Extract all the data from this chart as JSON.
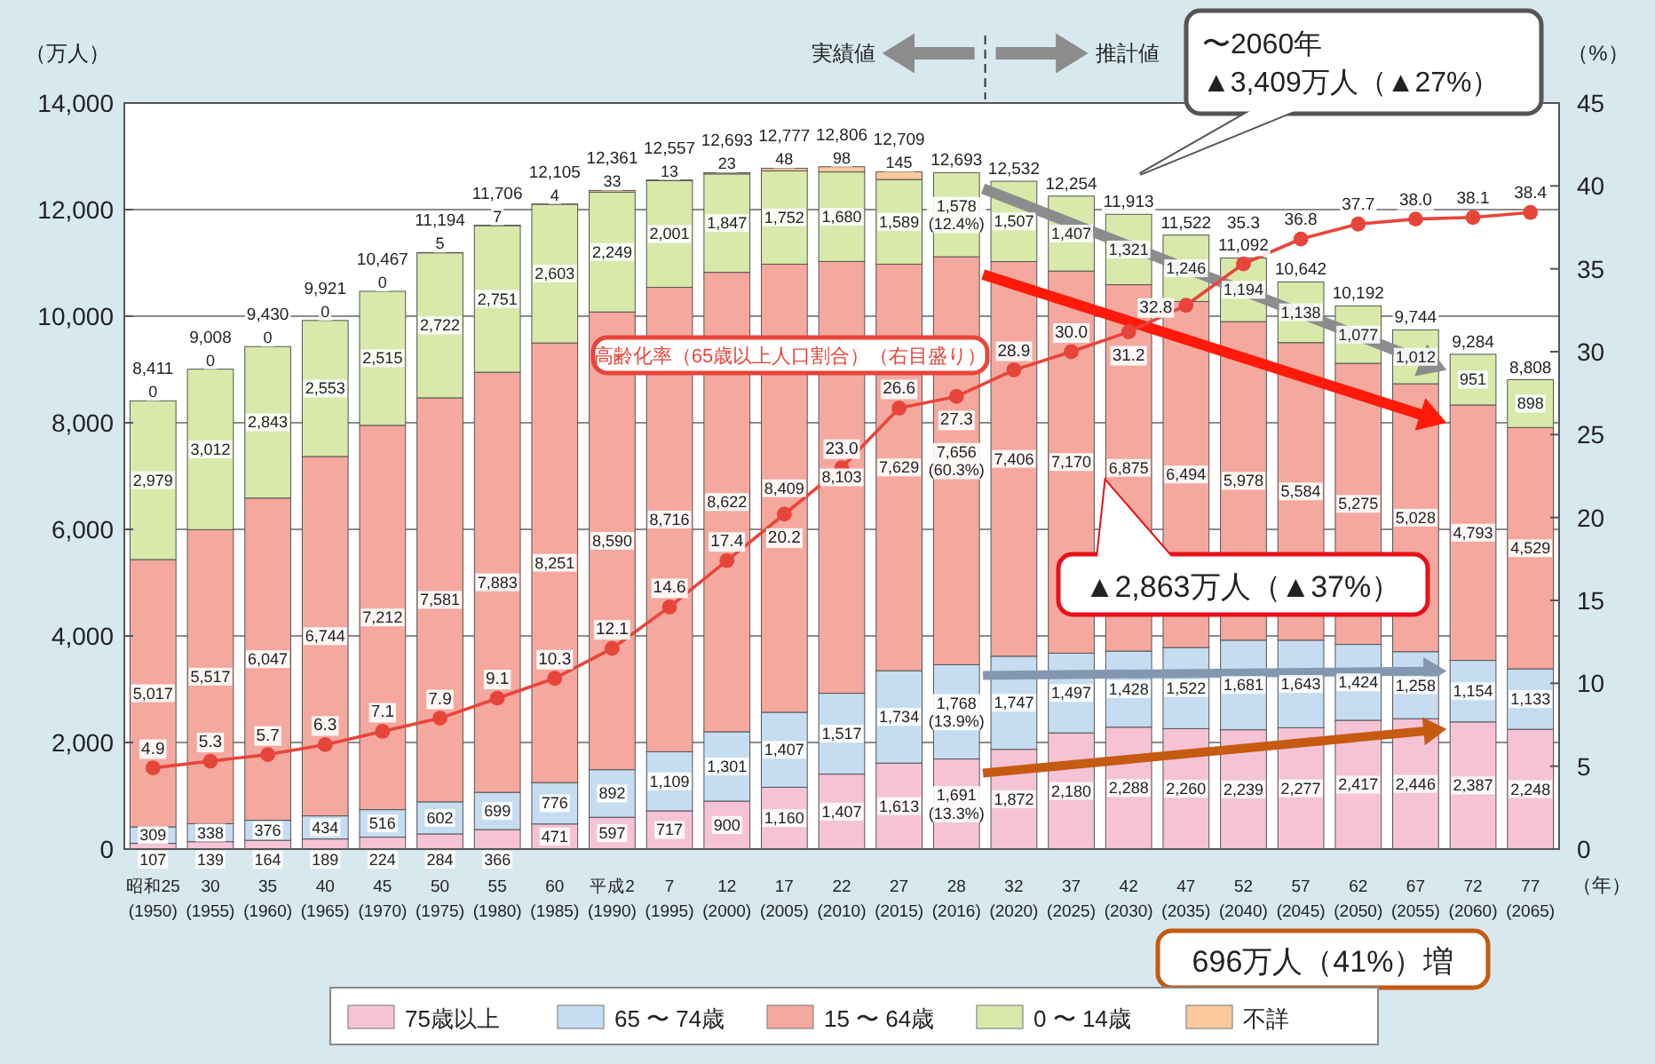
{
  "chart_data": {
    "type": "bar",
    "stacked": true,
    "categories": [
      "昭和25\n(1950)",
      "30\n(1955)",
      "35\n(1960)",
      "40\n(1965)",
      "45\n(1970)",
      "50\n(1975)",
      "55\n(1980)",
      "60\n(1985)",
      "平成2\n(1990)",
      "7\n(1995)",
      "12\n(2000)",
      "17\n(2005)",
      "22\n(2010)",
      "27\n(2015)",
      "28\n(2016)",
      "32\n(2020)",
      "37\n(2025)",
      "42\n(2030)",
      "47\n(2035)",
      "52\n(2040)",
      "57\n(2045)",
      "62\n(2050)",
      "67\n(2055)",
      "72\n(2060)",
      "77\n(2065)"
    ],
    "series": [
      {
        "name": "75歳以上",
        "color": "#f6c3d6",
        "values": [
          107,
          139,
          164,
          189,
          224,
          284,
          366,
          471,
          597,
          717,
          900,
          1160,
          1407,
          1613,
          1691,
          1872,
          2180,
          2288,
          2260,
          2239,
          2277,
          2417,
          2446,
          2387,
          2248
        ],
        "value_labels": [
          "107",
          "139",
          "164",
          "189",
          "224",
          "284",
          "366",
          "471",
          "597",
          "717",
          "900",
          "1,160",
          "1,407",
          "1,613",
          "1,691\n(13.3%)",
          "1,872",
          "2,180",
          "2,288",
          "2,260",
          "2,239",
          "2,277",
          "2,417",
          "2,446",
          "2,387",
          "2,248"
        ]
      },
      {
        "name": "65 〜 74歳",
        "color": "#c6ddf1",
        "values": [
          309,
          338,
          376,
          434,
          516,
          602,
          699,
          776,
          892,
          1109,
          1301,
          1407,
          1517,
          1734,
          1768,
          1747,
          1497,
          1428,
          1522,
          1681,
          1643,
          1424,
          1258,
          1154,
          1133
        ],
        "value_labels": [
          "309",
          "338",
          "376",
          "434",
          "516",
          "602",
          "699",
          "776",
          "892",
          "1,109",
          "1,301",
          "1,407",
          "1,517",
          "1,734",
          "1,768\n(13.9%)",
          "1,747",
          "1,497",
          "1,428",
          "1,522",
          "1,681",
          "1,643",
          "1,424",
          "1,258",
          "1,154",
          "1,133"
        ]
      },
      {
        "name": "15 〜 64歳",
        "color": "#f5a89e",
        "values": [
          5017,
          5517,
          6047,
          6744,
          7212,
          7581,
          7883,
          8251,
          8590,
          8716,
          8622,
          8409,
          8103,
          7629,
          7656,
          7406,
          7170,
          6875,
          6494,
          5978,
          5584,
          5275,
          5028,
          4793,
          4529
        ],
        "value_labels": [
          "5,017",
          "5,517",
          "6,047",
          "6,744",
          "7,212",
          "7,581",
          "7,883",
          "8,251",
          "8,590",
          "8,716",
          "8,622",
          "8,409",
          "8,103",
          "7,629",
          "7,656\n(60.3%)",
          "7,406",
          "7,170",
          "6,875",
          "6,494",
          "5,978",
          "5,584",
          "5,275",
          "5,028",
          "4,793",
          "4,529"
        ]
      },
      {
        "name": "0 〜 14歳",
        "color": "#d8e9aa",
        "values": [
          2979,
          3012,
          2843,
          2553,
          2515,
          2722,
          2751,
          2603,
          2249,
          2001,
          1847,
          1752,
          1680,
          1589,
          1578,
          1507,
          1407,
          1321,
          1246,
          1194,
          1138,
          1077,
          1012,
          951,
          898
        ],
        "value_labels": [
          "2,979",
          "3,012",
          "2,843",
          "2,553",
          "2,515",
          "2,722",
          "2,751",
          "2,603",
          "2,249",
          "2,001",
          "1,847",
          "1,752",
          "1,680",
          "1,589",
          "1,578\n(12.4%)",
          "1,507",
          "1,407",
          "1,321",
          "1,246",
          "1,194",
          "1,138",
          "1,077",
          "1,012",
          "951",
          "898"
        ]
      },
      {
        "name": "不詳",
        "color": "#fbc99c",
        "values": [
          0,
          0,
          0,
          0,
          0,
          5,
          7,
          4,
          33,
          13,
          23,
          48,
          98,
          145,
          null,
          null,
          null,
          null,
          null,
          null,
          null,
          null,
          null,
          null,
          null
        ],
        "value_labels": [
          "0",
          "0",
          "0",
          "0",
          "0",
          "5",
          "7",
          "4",
          "33",
          "13",
          "23",
          "48",
          "98",
          "145",
          null,
          null,
          null,
          null,
          null,
          null,
          null,
          null,
          null,
          null,
          null
        ]
      },
      {
        "name": "高齢化率（65歳以上人口割合）（右目盛り）",
        "type": "line",
        "axis": "y2",
        "color": "#e8453a",
        "values": [
          4.9,
          5.3,
          5.7,
          6.3,
          7.1,
          7.9,
          9.1,
          10.3,
          12.1,
          14.6,
          17.4,
          20.2,
          23.0,
          26.6,
          27.3,
          28.9,
          30.0,
          31.2,
          32.8,
          35.3,
          36.8,
          37.7,
          38.0,
          38.1,
          38.4
        ],
        "value_labels": [
          "4.9",
          "5.3",
          "5.7",
          "6.3",
          "7.1",
          "7.9",
          "9.1",
          "10.3",
          "12.1",
          "14.6",
          "17.4",
          "20.2",
          "23.0",
          "26.6",
          "27.3",
          "28.9",
          "30.0",
          "31.2",
          "32.8",
          "35.3",
          "36.8",
          "37.7",
          "38.0",
          "38.1",
          "38.4"
        ]
      }
    ],
    "totals": [
      "8,411",
      "9,008",
      "9,430",
      "9,921",
      "10,467",
      "11,194",
      "11,706",
      "12,105",
      "12,361",
      "12,557",
      "12,693",
      "12,777",
      "12,806",
      "12,709",
      "12,693",
      "12,532",
      "12,254",
      "11,913",
      "11,522",
      "11,092",
      "10,642",
      "10,192",
      "9,744",
      "9,284",
      "8,808"
    ],
    "ylabel": "（万人）",
    "y2label": "（%）",
    "xlabel": "（年）",
    "ylim": [
      0,
      14000
    ],
    "yticks": [
      0,
      {
        "value": 2000,
        "label": "2,000"
      },
      {
        "value": 4000,
        "label": "4,000"
      },
      {
        "value": 6000,
        "label": "6,000"
      },
      {
        "value": 8000,
        "label": "8,000"
      },
      {
        "value": 10000,
        "label": "10,000"
      },
      {
        "value": 12000,
        "label": "12,000"
      },
      {
        "value": 14000,
        "label": "14,000"
      }
    ],
    "y2lim": [
      0,
      45
    ],
    "y2ticks": [
      0,
      5,
      10,
      15,
      20,
      25,
      30,
      35,
      40,
      45
    ],
    "grid": "y",
    "marker": "circle",
    "line_style": "solid",
    "legend": "bottom",
    "annotations": [
      "実績値",
      "推計値",
      "〜2060年\n▲3,409万人（▲27%）",
      "▲2,863万人（▲37%）",
      "696万人（41%）増"
    ]
  }
}
